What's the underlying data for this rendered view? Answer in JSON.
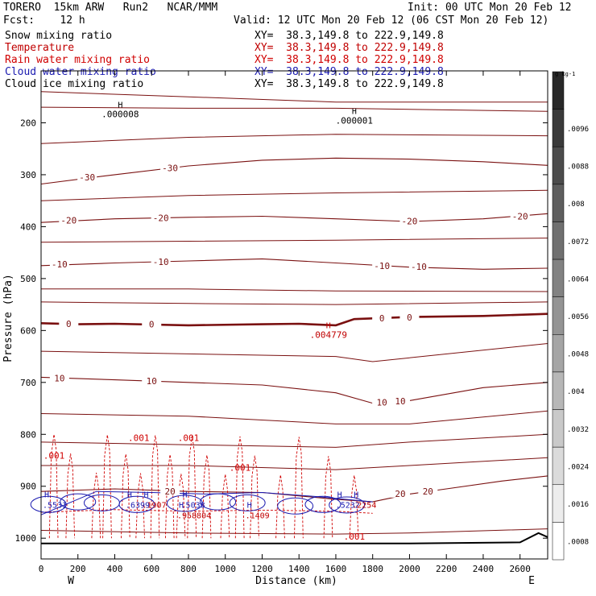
{
  "header": {
    "model": "TORERO",
    "resolution": "15km ARW",
    "run": "Run2",
    "center": "NCAR/MMM",
    "init_label": "Init:",
    "init_time": "00 UTC Mon 20 Feb 12",
    "fcst_label": "Fcst:",
    "fcst_hours": "12 h",
    "valid_label": "Valid:",
    "valid_time": "12 UTC Mon 20 Feb 12 (06 CST Mon 20 Feb 12)"
  },
  "fields": [
    {
      "name": "Snow mixing ratio",
      "xy": "XY=  38.3,149.8 to 222.9,149.8",
      "color": "#000000"
    },
    {
      "name": "Temperature",
      "xy": "XY=  38.3,149.8 to 222.9,149.8",
      "color": "#c00000"
    },
    {
      "name": "Rain water mixing ratio",
      "xy": "XY=  38.3,149.8 to 222.9,149.8",
      "color": "#d00000"
    },
    {
      "name": "Cloud water mixing ratio",
      "xy": "XY=  38.3,149.8 to 222.9,149.8",
      "color": "#1a1ab0"
    },
    {
      "name": "Cloud ice mixing ratio",
      "xy": "XY=  38.3,149.8 to 222.9,149.8",
      "color": "#000000"
    }
  ],
  "chart_data": {
    "type": "cross-section contour",
    "xlabel": "Distance (km)",
    "ylabel": "Pressure (hPa)",
    "xlim": [
      0,
      2750
    ],
    "ylim": [
      1040,
      100
    ],
    "x_ticks": [
      0,
      200,
      400,
      600,
      800,
      1000,
      1200,
      1400,
      1600,
      1800,
      2000,
      2200,
      2400,
      2600
    ],
    "y_ticks": [
      200,
      300,
      400,
      500,
      600,
      700,
      800,
      900,
      1000
    ],
    "end_labels": {
      "left": "W",
      "right": "E"
    },
    "temperature_contours": [
      {
        "level": -30,
        "points": [
          [
            0,
            318
          ],
          [
            400,
            300
          ],
          [
            800,
            283
          ],
          [
            1200,
            272
          ],
          [
            1600,
            268
          ],
          [
            2000,
            270
          ],
          [
            2400,
            275
          ],
          [
            2750,
            282
          ]
        ]
      },
      {
        "level": -20,
        "points": [
          [
            0,
            392
          ],
          [
            400,
            385
          ],
          [
            800,
            382
          ],
          [
            1200,
            380
          ],
          [
            1600,
            385
          ],
          [
            2000,
            390
          ],
          [
            2400,
            385
          ],
          [
            2750,
            375
          ]
        ]
      },
      {
        "level": -10,
        "points": [
          [
            0,
            475
          ],
          [
            400,
            470
          ],
          [
            800,
            466
          ],
          [
            1200,
            462
          ],
          [
            1600,
            470
          ],
          [
            2000,
            478
          ],
          [
            2400,
            482
          ],
          [
            2750,
            480
          ]
        ]
      },
      {
        "level": 0,
        "points": [
          [
            0,
            586
          ],
          [
            200,
            588
          ],
          [
            400,
            587
          ],
          [
            800,
            590
          ],
          [
            1200,
            588
          ],
          [
            1400,
            587
          ],
          [
            1600,
            590
          ],
          [
            1700,
            578
          ],
          [
            2000,
            574
          ],
          [
            2400,
            572
          ],
          [
            2750,
            568
          ]
        ]
      },
      {
        "level": 10,
        "points": [
          [
            0,
            690
          ],
          [
            400,
            695
          ],
          [
            800,
            700
          ],
          [
            1200,
            705
          ],
          [
            1600,
            720
          ],
          [
            1800,
            740
          ],
          [
            2000,
            735
          ],
          [
            2400,
            710
          ],
          [
            2750,
            700
          ]
        ]
      },
      {
        "level": 20,
        "points": [
          [
            0,
            910
          ],
          [
            400,
            905
          ],
          [
            800,
            910
          ],
          [
            1200,
            912
          ],
          [
            1600,
            925
          ],
          [
            1800,
            930
          ],
          [
            2000,
            915
          ],
          [
            2200,
            905
          ],
          [
            2500,
            890
          ],
          [
            2750,
            880
          ]
        ]
      }
    ],
    "extra_temperature_lines": [
      [
        [
          0,
          140
        ],
        [
          800,
          150
        ],
        [
          1600,
          160
        ],
        [
          2750,
          160
        ]
      ],
      [
        [
          0,
          170
        ],
        [
          800,
          172
        ],
        [
          1600,
          172
        ],
        [
          2750,
          178
        ]
      ],
      [
        [
          0,
          240
        ],
        [
          800,
          228
        ],
        [
          1600,
          222
        ],
        [
          2750,
          225
        ]
      ],
      [
        [
          0,
          350
        ],
        [
          800,
          340
        ],
        [
          1600,
          335
        ],
        [
          2750,
          330
        ]
      ],
      [
        [
          0,
          430
        ],
        [
          800,
          428
        ],
        [
          1600,
          426
        ],
        [
          2750,
          422
        ]
      ],
      [
        [
          0,
          520
        ],
        [
          800,
          520
        ],
        [
          1600,
          524
        ],
        [
          2750,
          525
        ]
      ],
      [
        [
          0,
          545
        ],
        [
          800,
          548
        ],
        [
          1600,
          550
        ],
        [
          2750,
          545
        ]
      ],
      [
        [
          0,
          640
        ],
        [
          800,
          645
        ],
        [
          1600,
          650
        ],
        [
          1800,
          660
        ],
        [
          2750,
          625
        ]
      ],
      [
        [
          0,
          760
        ],
        [
          800,
          765
        ],
        [
          1600,
          780
        ],
        [
          2000,
          780
        ],
        [
          2750,
          755
        ]
      ],
      [
        [
          0,
          815
        ],
        [
          800,
          820
        ],
        [
          1600,
          825
        ],
        [
          2000,
          815
        ],
        [
          2750,
          800
        ]
      ],
      [
        [
          0,
          860
        ],
        [
          800,
          860
        ],
        [
          1600,
          868
        ],
        [
          2000,
          860
        ],
        [
          2750,
          845
        ]
      ],
      [
        [
          0,
          985
        ],
        [
          800,
          990
        ],
        [
          1600,
          992
        ],
        [
          2000,
          990
        ],
        [
          2750,
          982
        ]
      ]
    ],
    "contour_labels": [
      {
        "text": "-30",
        "x": 250,
        "p": 305
      },
      {
        "text": "-30",
        "x": 700,
        "p": 287
      },
      {
        "text": "-20",
        "x": 150,
        "p": 388
      },
      {
        "text": "-20",
        "x": 650,
        "p": 383
      },
      {
        "text": "-20",
        "x": 2000,
        "p": 389
      },
      {
        "text": "-20",
        "x": 2600,
        "p": 380
      },
      {
        "text": "-10",
        "x": 100,
        "p": 472
      },
      {
        "text": "-10",
        "x": 650,
        "p": 468
      },
      {
        "text": "-10",
        "x": 1850,
        "p": 475
      },
      {
        "text": "-10",
        "x": 2050,
        "p": 477
      },
      {
        "text": "0",
        "x": 150,
        "p": 587
      },
      {
        "text": "0",
        "x": 600,
        "p": 588
      },
      {
        "text": "0",
        "x": 1850,
        "p": 576
      },
      {
        "text": "0",
        "x": 2000,
        "p": 575
      },
      {
        "text": "10",
        "x": 100,
        "p": 692
      },
      {
        "text": "10",
        "x": 600,
        "p": 697
      },
      {
        "text": "10",
        "x": 1850,
        "p": 738
      },
      {
        "text": "10",
        "x": 1950,
        "p": 736
      },
      {
        "text": "20",
        "x": 700,
        "p": 910
      },
      {
        "text": "20",
        "x": 1950,
        "p": 914
      },
      {
        "text": "20",
        "x": 2100,
        "p": 910
      }
    ],
    "max_labels": [
      {
        "mark": "H",
        "value": ".000008",
        "x": 430,
        "p": 180,
        "color": "#000000"
      },
      {
        "mark": "H",
        "value": ".000001",
        "x": 1700,
        "p": 192,
        "color": "#000000"
      },
      {
        "mark": "H",
        "value": ".004779",
        "x": 1560,
        "p": 605,
        "color": "#c00000"
      }
    ],
    "rain_labels": [
      {
        "text": ".001",
        "x": 70,
        "p": 847
      },
      {
        "text": ".001",
        "x": 530,
        "p": 813
      },
      {
        "text": ".001",
        "x": 800,
        "p": 813
      },
      {
        "text": ".001",
        "x": 1080,
        "p": 870
      },
      {
        "text": ".001",
        "x": 1700,
        "p": 1003
      }
    ],
    "cloud_max_labels": [
      {
        "text": ".5531",
        "x": 0,
        "p": 937,
        "color": "#1a1ab0"
      },
      {
        "text": ".6399",
        "x": 450,
        "p": 937,
        "color": "#1a1ab0"
      },
      {
        "text": ".1907",
        "x": 540,
        "p": 937,
        "color": "#c00000"
      },
      {
        "text": ".5038",
        "x": 750,
        "p": 937,
        "color": "#1a1ab0"
      },
      {
        "text": ".958804",
        "x": 730,
        "p": 957,
        "color": "#c00000"
      },
      {
        "text": ".1409",
        "x": 1100,
        "p": 957,
        "color": "#c00000"
      },
      {
        "text": ".5232",
        "x": 1590,
        "p": 937,
        "color": "#1a1ab0"
      },
      {
        "text": ".2254",
        "x": 1680,
        "p": 937,
        "color": "#c00000"
      }
    ],
    "colorbar": {
      "unit": "g kg-1",
      "levels": [
        "",
        ".0096",
        ".0088",
        ".008",
        ".0072",
        ".0064",
        ".0056",
        ".0048",
        ".004",
        ".0032",
        ".0024",
        ".0016",
        ".0008"
      ]
    }
  }
}
